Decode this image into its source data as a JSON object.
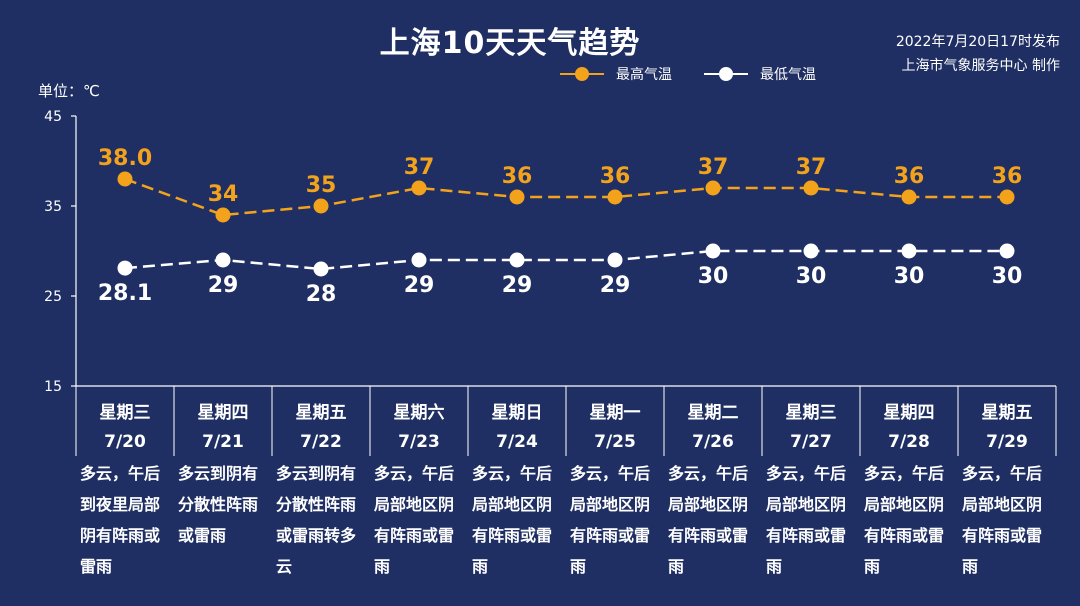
{
  "title": "上海10天天气趋势",
  "publish": {
    "line1": "2022年7月20日17时发布",
    "line2": "上海市气象服务中心 制作"
  },
  "unit_label": "单位：℃",
  "legend": {
    "high": "最高气温",
    "low": "最低气温"
  },
  "colors": {
    "background": "#1f2f63",
    "high": "#f3a21c",
    "low": "#ffffff"
  },
  "chart_data": {
    "type": "line",
    "title": "上海10天天气趋势",
    "ylabel": "单位：℃",
    "ylim": [
      15,
      45
    ],
    "yticks": [
      15,
      25,
      35,
      45
    ],
    "grid": false,
    "legend_position": "top-right",
    "categories": [
      {
        "weekday": "星期三",
        "date": "7/20"
      },
      {
        "weekday": "星期四",
        "date": "7/21"
      },
      {
        "weekday": "星期五",
        "date": "7/22"
      },
      {
        "weekday": "星期六",
        "date": "7/23"
      },
      {
        "weekday": "星期日",
        "date": "7/24"
      },
      {
        "weekday": "星期一",
        "date": "7/25"
      },
      {
        "weekday": "星期二",
        "date": "7/26"
      },
      {
        "weekday": "星期三",
        "date": "7/27"
      },
      {
        "weekday": "星期四",
        "date": "7/28"
      },
      {
        "weekday": "星期五",
        "date": "7/29"
      }
    ],
    "series": [
      {
        "name": "最高气温",
        "values": [
          38.0,
          34,
          35,
          37,
          36,
          36,
          37,
          37,
          36,
          36
        ],
        "labels": [
          "38.0",
          "34",
          "35",
          "37",
          "36",
          "36",
          "37",
          "37",
          "36",
          "36"
        ]
      },
      {
        "name": "最低气温",
        "values": [
          28.1,
          29,
          28,
          29,
          29,
          29,
          30,
          30,
          30,
          30
        ],
        "labels": [
          "28.1",
          "29",
          "28",
          "29",
          "29",
          "29",
          "30",
          "30",
          "30",
          "30"
        ]
      }
    ]
  },
  "descriptions": [
    "多云，午后到夜里局部阴有阵雨或雷雨",
    "多云到阴有分散性阵雨或雷雨",
    "多云到阴有分散性阵雨或雷雨转多云",
    "多云，午后局部地区阴有阵雨或雷雨",
    "多云，午后局部地区阴有阵雨或雷雨",
    "多云，午后局部地区阴有阵雨或雷雨",
    "多云，午后局部地区阴有阵雨或雷雨",
    "多云，午后局部地区阴有阵雨或雷雨",
    "多云，午后局部地区阴有阵雨或雷雨",
    "多云，午后局部地区阴有阵雨或雷雨"
  ]
}
